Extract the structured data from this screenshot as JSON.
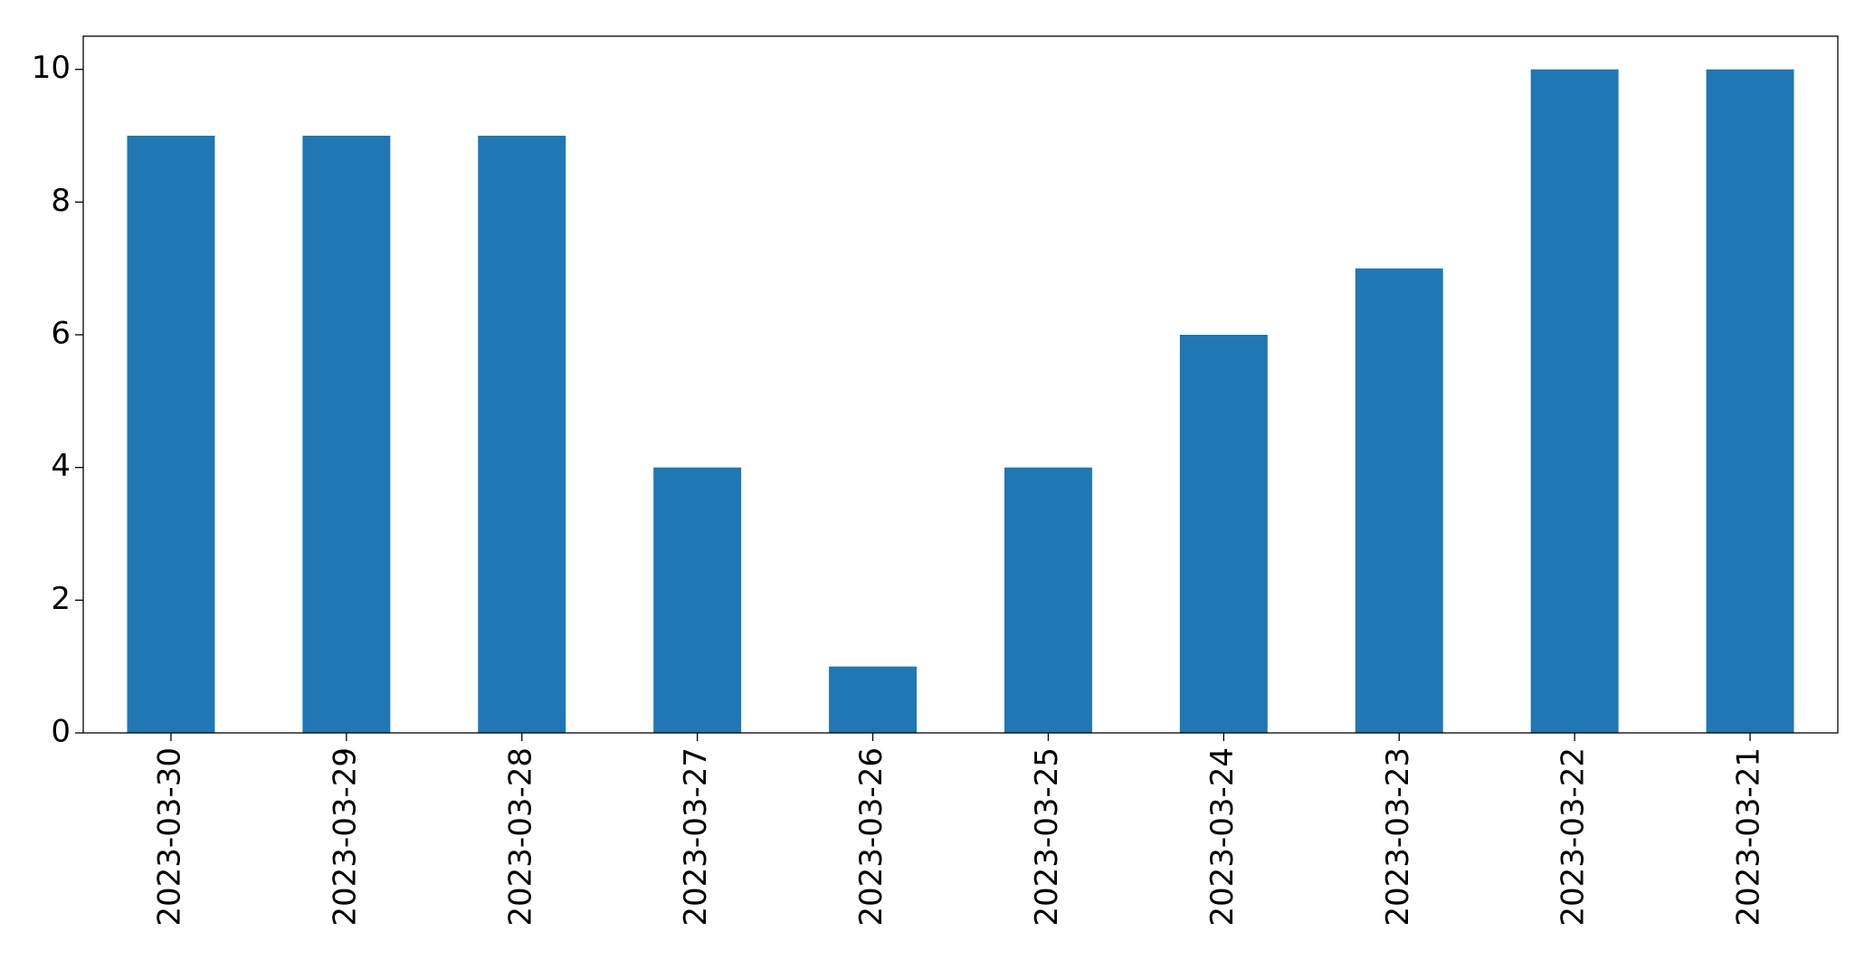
{
  "chart_data": {
    "type": "bar",
    "categories": [
      "2023-03-30",
      "2023-03-29",
      "2023-03-28",
      "2023-03-27",
      "2023-03-26",
      "2023-03-25",
      "2023-03-24",
      "2023-03-23",
      "2023-03-22",
      "2023-03-21"
    ],
    "values": [
      9,
      9,
      9,
      4,
      1,
      4,
      6,
      7,
      10,
      10
    ],
    "color": "#1f77b4",
    "ylim": [
      0,
      10.5
    ],
    "yticks": [
      0,
      2,
      4,
      6,
      8,
      10
    ],
    "grid": false
  }
}
